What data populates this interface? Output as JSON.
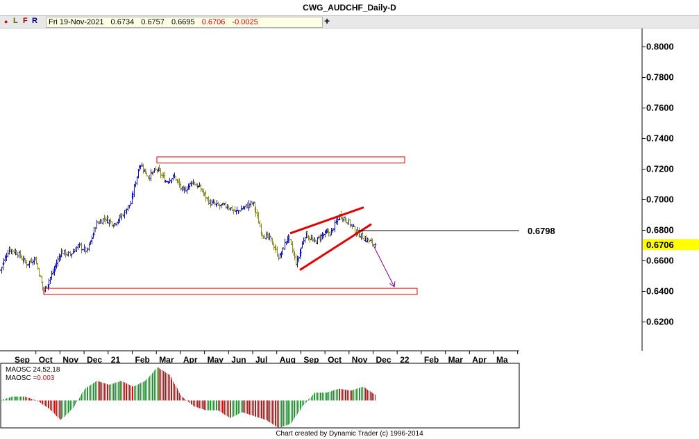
{
  "window": {
    "title": "CWG_AUDCHF_Daily-D"
  },
  "toolbar": {
    "dot": "●",
    "buttons": [
      "L",
      "F",
      "R"
    ],
    "quote": {
      "date": "Fri 19-Nov-2021",
      "open": "0.6734",
      "high": "0.6757",
      "low": "0.6695",
      "close": "0.6706",
      "change": "-0.0025"
    },
    "add_label": "+"
  },
  "footer": {
    "credit": "Chart created by Dynamic Trader  (c) 1996-2014"
  },
  "colors": {
    "up_bar": "#1010c8",
    "down_bar": "#8a8a20",
    "annotation": "#e00000",
    "projection": "#800080",
    "osc_up": "#1f9a2f",
    "osc_down": "#d01010",
    "last_price_bg": "#ffff00"
  },
  "chart_data": [
    {
      "type": "ohlc",
      "title": "CWG_AUDCHF_Daily-D",
      "x_tick_labels": [
        "Sep",
        "Oct",
        "Nov",
        "Dec",
        "21",
        "Feb",
        "Mar",
        "Apr",
        "May",
        "Jun",
        "Jul",
        "Aug",
        "Sep",
        "Oct",
        "Nov",
        "Dec",
        "22",
        "Feb",
        "Mar",
        "Apr",
        "Ma"
      ],
      "y_tick_labels": [
        "0.8000",
        "0.7800",
        "0.7600",
        "0.7400",
        "0.7200",
        "0.7000",
        "0.6800",
        "0.6600",
        "0.6400",
        "0.6200"
      ],
      "ylim": [
        0.61,
        0.805
      ],
      "last_price": "0.6706",
      "level_label": "0.6798",
      "level_value": 0.6798,
      "grid": false,
      "close_series": {
        "x_range": [
          "Sep-2020",
          "19-Nov-2021"
        ],
        "anchors": [
          [
            "Sep-2020",
            0.654
          ],
          [
            "early Sep 2020",
            0.668
          ],
          [
            "mid Sep 2020",
            0.665
          ],
          [
            "late Sep 2020",
            0.658
          ],
          [
            "early Oct 2020",
            0.662
          ],
          [
            "late Oct 2020",
            0.64
          ],
          [
            "early Nov 2020",
            0.652
          ],
          [
            "mid Nov 2020",
            0.666
          ],
          [
            "late Nov 2020",
            0.664
          ],
          [
            "early Dec 2020",
            0.67
          ],
          [
            "mid Dec 2020",
            0.666
          ],
          [
            "late Dec 2020",
            0.684
          ],
          [
            "early Jan 2021",
            0.688
          ],
          [
            "late Jan 2021",
            0.684
          ],
          [
            "early Feb 2021",
            0.69
          ],
          [
            "mid Feb 2021",
            0.698
          ],
          [
            "late Feb 2021",
            0.724
          ],
          [
            "early Mar 2021",
            0.715
          ],
          [
            "mid Mar 2021",
            0.72
          ],
          [
            "late Mar 2021",
            0.712
          ],
          [
            "early Apr 2021",
            0.715
          ],
          [
            "mid Apr 2021",
            0.705
          ],
          [
            "late Apr 2021",
            0.712
          ],
          [
            "early May 2021",
            0.707
          ],
          [
            "mid May 2021",
            0.698
          ],
          [
            "late May 2021",
            0.696
          ],
          [
            "early Jun 2021",
            0.696
          ],
          [
            "mid Jun 2021",
            0.692
          ],
          [
            "late Jun 2021",
            0.695
          ],
          [
            "early Jul 2021",
            0.698
          ],
          [
            "mid Jul 2021",
            0.678
          ],
          [
            "late Jul 2021",
            0.674
          ],
          [
            "early Aug 2021",
            0.662
          ],
          [
            "mid Aug 2021",
            0.676
          ],
          [
            "late Aug 2021",
            0.658
          ],
          [
            "early Sep 2021",
            0.678
          ],
          [
            "mid Sep 2021",
            0.672
          ],
          [
            "late Sep 2021",
            0.677
          ],
          [
            "early Oct 2021",
            0.679
          ],
          [
            "mid Oct 2021",
            0.69
          ],
          [
            "late Oct 2021",
            0.685
          ],
          [
            "early Nov 2021",
            0.678
          ],
          [
            "mid Nov 2021",
            0.674
          ],
          [
            "19-Nov-2021",
            0.6706
          ]
        ]
      },
      "annotations": [
        {
          "type": "box",
          "label": "resistance zone",
          "y_range": [
            0.724,
            0.728
          ],
          "x_range": [
            "late Feb 2021",
            "late Dec 2021"
          ]
        },
        {
          "type": "box",
          "label": "support zone",
          "y_range": [
            0.638,
            0.642
          ],
          "x_range": [
            "late Sep 2020",
            "early Jan 2022"
          ]
        },
        {
          "type": "trendline",
          "from": [
            "late Jul 2021",
            0.678
          ],
          "to": [
            "late Oct 2021",
            0.695
          ]
        },
        {
          "type": "trendline",
          "from": [
            "mid Aug 2021",
            0.654
          ],
          "to": [
            "mid Nov 2021",
            0.684
          ]
        },
        {
          "type": "arrow",
          "from": [
            "19-Nov-2021",
            0.67
          ],
          "to": [
            "mid Dec 2021",
            0.643
          ]
        }
      ]
    },
    {
      "type": "bar",
      "title": "MAOSC 24,52,18",
      "value_label": "MAOSC =",
      "value": "0.003",
      "ylim": [
        -0.018,
        0.018
      ],
      "anchors": [
        [
          "Sep-2020",
          0.0
        ],
        [
          "mid Sep 2020",
          0.002
        ],
        [
          "early Oct 2020",
          0.002
        ],
        [
          "mid Oct 2020",
          0.0
        ],
        [
          "late Oct 2020",
          -0.004
        ],
        [
          "mid Nov 2020",
          -0.01
        ],
        [
          "late Nov 2020",
          -0.004
        ],
        [
          "mid Dec 2020",
          0.006
        ],
        [
          "early Jan 2021",
          0.01
        ],
        [
          "mid Jan 2021",
          0.008
        ],
        [
          "early Feb 2021",
          0.01
        ],
        [
          "mid Feb 2021",
          0.007
        ],
        [
          "late Feb 2021",
          0.01
        ],
        [
          "mid Mar 2021",
          0.017
        ],
        [
          "late Mar 2021",
          0.013
        ],
        [
          "mid Apr 2021",
          0.002
        ],
        [
          "late Apr 2021",
          -0.003
        ],
        [
          "mid May 2021",
          -0.005
        ],
        [
          "early Jun 2021",
          -0.005
        ],
        [
          "mid Jun 2021",
          -0.009
        ],
        [
          "early Jul 2021",
          -0.006
        ],
        [
          "mid Jul 2021",
          -0.008
        ],
        [
          "late Jul 2021",
          -0.01
        ],
        [
          "early Aug 2021",
          -0.014
        ],
        [
          "mid Aug 2021",
          -0.012
        ],
        [
          "early Sep 2021",
          -0.003
        ],
        [
          "mid Sep 2021",
          0.004
        ],
        [
          "early Oct 2021",
          0.004
        ],
        [
          "mid Oct 2021",
          0.006
        ],
        [
          "late Oct 2021",
          0.005
        ],
        [
          "early Nov 2021",
          0.007
        ],
        [
          "19-Nov-2021",
          0.003
        ]
      ]
    }
  ]
}
